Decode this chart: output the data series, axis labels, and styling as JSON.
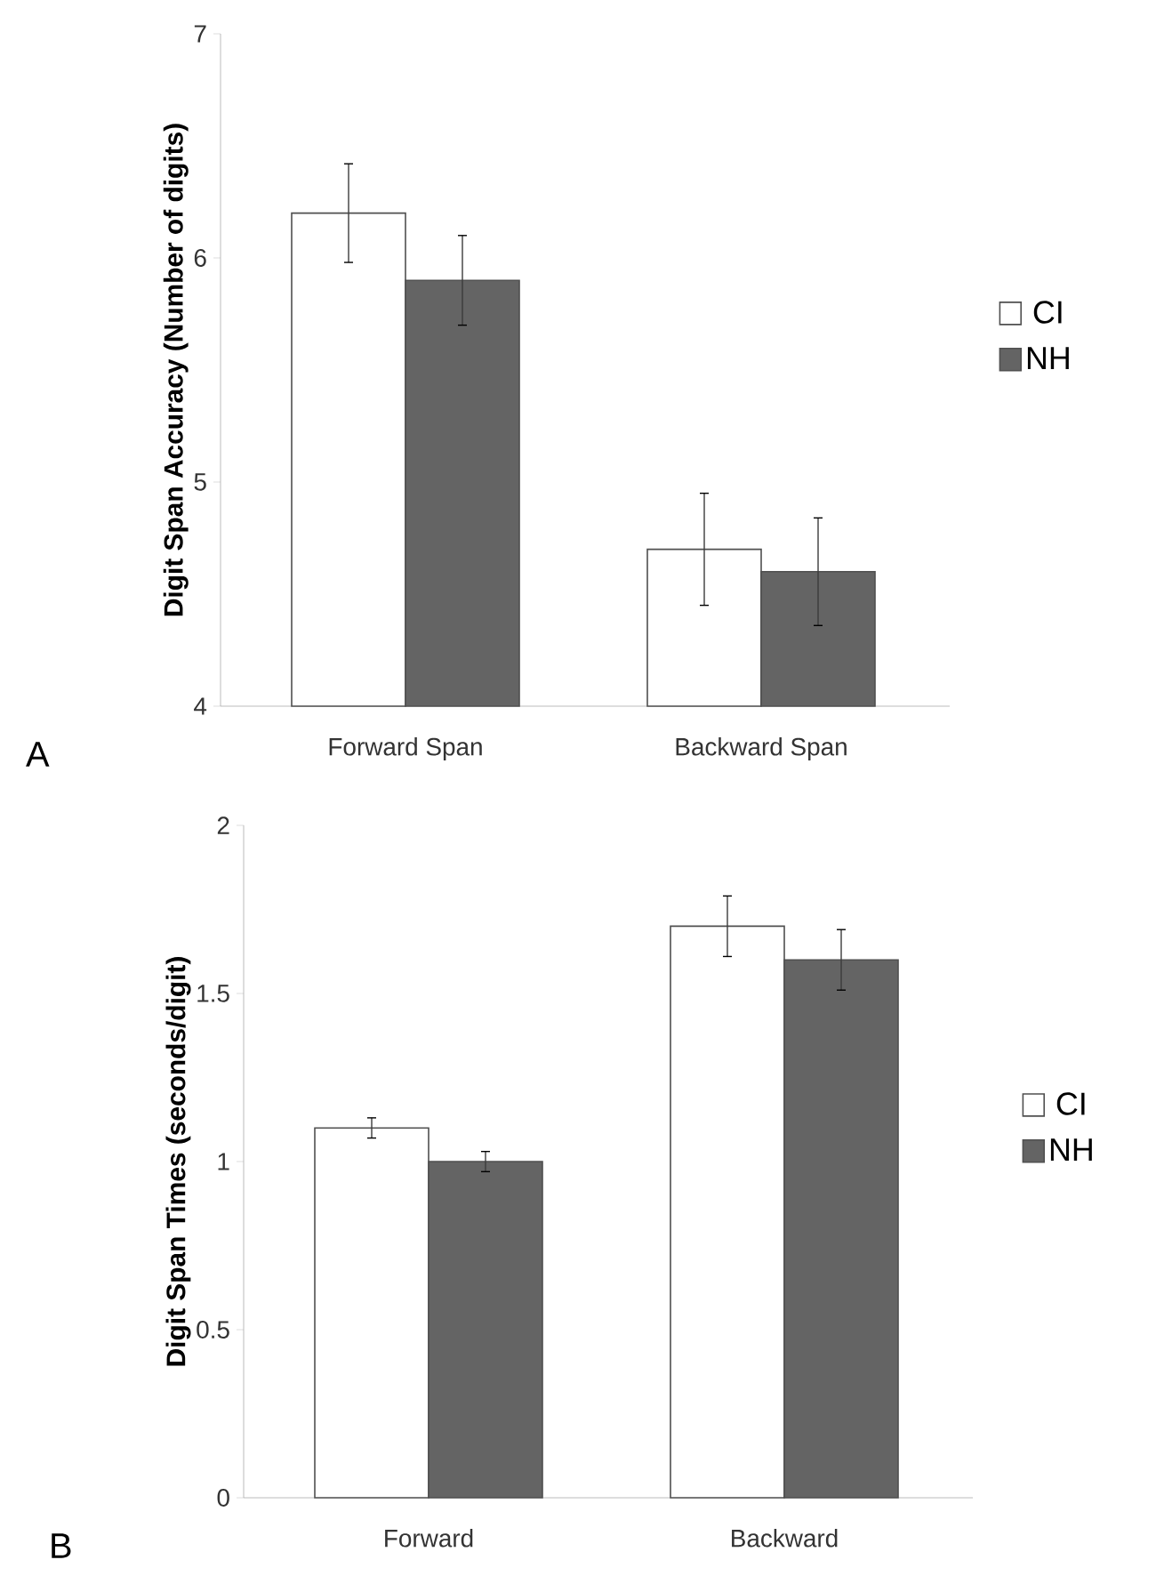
{
  "chart_data": [
    {
      "type": "bar",
      "ylabel": "Digit Span Accuracy (Number of digits)",
      "categories": [
        "Forward Span",
        "Backward Span"
      ],
      "series": [
        {
          "name": "CI",
          "color": "#ffffff",
          "values": [
            6.2,
            4.7
          ],
          "errors": [
            0.22,
            0.25
          ]
        },
        {
          "name": "NH",
          "color": "#646464",
          "values": [
            5.9,
            4.6
          ],
          "errors": [
            0.2,
            0.24
          ]
        }
      ],
      "ylim": [
        4,
        7
      ],
      "yticks": [
        4,
        5,
        6,
        7
      ],
      "legend": "right",
      "annotations": [
        "A"
      ]
    },
    {
      "type": "bar",
      "ylabel": "Digit Span Times (seconds/digit)",
      "categories": [
        "Forward",
        "Backward"
      ],
      "series": [
        {
          "name": "CI",
          "color": "#ffffff",
          "values": [
            1.1,
            1.7
          ],
          "errors": [
            0.03,
            0.09
          ]
        },
        {
          "name": "NH",
          "color": "#646464",
          "values": [
            1.0,
            1.6
          ],
          "errors": [
            0.03,
            0.09
          ]
        }
      ],
      "ylim": [
        0,
        2
      ],
      "yticks": [
        0,
        0.5,
        1,
        1.5,
        2
      ],
      "legend": "right",
      "annotations": [
        "B"
      ]
    }
  ]
}
